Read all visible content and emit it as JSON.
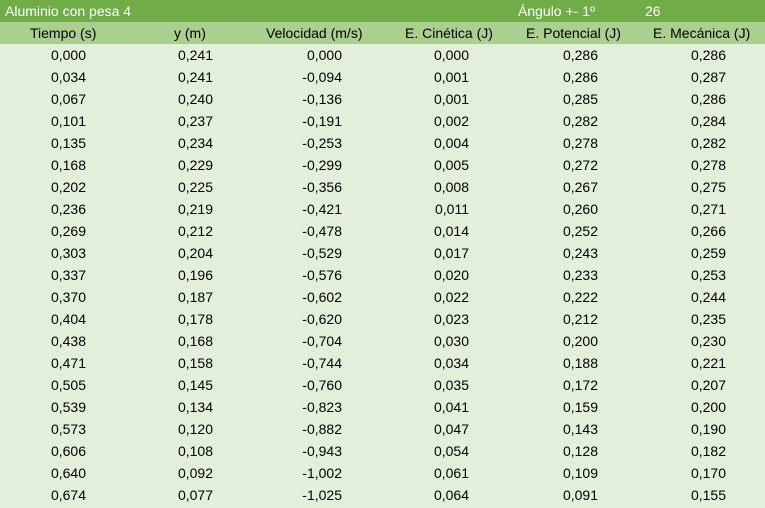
{
  "title_bar": {
    "title": "Aluminio con pesa 4",
    "angle_label": "Ángulo +- 1º",
    "angle_value": "26"
  },
  "colors": {
    "title_bg": "#70ad47",
    "header_bg": "#a9d08e",
    "body_bg": "#e2efda",
    "title_text": "#ffffff"
  },
  "columns": [
    "Tiempo (s)",
    "y (m)",
    "Velocidad (m/s)",
    "E. Cinética (J)",
    "E. Potencial (J)",
    "E. Mecánica (J)"
  ],
  "rows": [
    [
      "0,000",
      "0,241",
      "0,000",
      "0,000",
      "0,286",
      "0,286"
    ],
    [
      "0,034",
      "0,241",
      "-0,094",
      "0,001",
      "0,286",
      "0,287"
    ],
    [
      "0,067",
      "0,240",
      "-0,136",
      "0,001",
      "0,285",
      "0,286"
    ],
    [
      "0,101",
      "0,237",
      "-0,191",
      "0,002",
      "0,282",
      "0,284"
    ],
    [
      "0,135",
      "0,234",
      "-0,253",
      "0,004",
      "0,278",
      "0,282"
    ],
    [
      "0,168",
      "0,229",
      "-0,299",
      "0,005",
      "0,272",
      "0,278"
    ],
    [
      "0,202",
      "0,225",
      "-0,356",
      "0,008",
      "0,267",
      "0,275"
    ],
    [
      "0,236",
      "0,219",
      "-0,421",
      "0,011",
      "0,260",
      "0,271"
    ],
    [
      "0,269",
      "0,212",
      "-0,478",
      "0,014",
      "0,252",
      "0,266"
    ],
    [
      "0,303",
      "0,204",
      "-0,529",
      "0,017",
      "0,243",
      "0,259"
    ],
    [
      "0,337",
      "0,196",
      "-0,576",
      "0,020",
      "0,233",
      "0,253"
    ],
    [
      "0,370",
      "0,187",
      "-0,602",
      "0,022",
      "0,222",
      "0,244"
    ],
    [
      "0,404",
      "0,178",
      "-0,620",
      "0,023",
      "0,212",
      "0,235"
    ],
    [
      "0,438",
      "0,168",
      "-0,704",
      "0,030",
      "0,200",
      "0,230"
    ],
    [
      "0,471",
      "0,158",
      "-0,744",
      "0,034",
      "0,188",
      "0,221"
    ],
    [
      "0,505",
      "0,145",
      "-0,760",
      "0,035",
      "0,172",
      "0,207"
    ],
    [
      "0,539",
      "0,134",
      "-0,823",
      "0,041",
      "0,159",
      "0,200"
    ],
    [
      "0,573",
      "0,120",
      "-0,882",
      "0,047",
      "0,143",
      "0,190"
    ],
    [
      "0,606",
      "0,108",
      "-0,943",
      "0,054",
      "0,128",
      "0,182"
    ],
    [
      "0,640",
      "0,092",
      "-1,002",
      "0,061",
      "0,109",
      "0,170"
    ],
    [
      "0,674",
      "0,077",
      "-1,025",
      "0,064",
      "0,091",
      "0,155"
    ]
  ]
}
